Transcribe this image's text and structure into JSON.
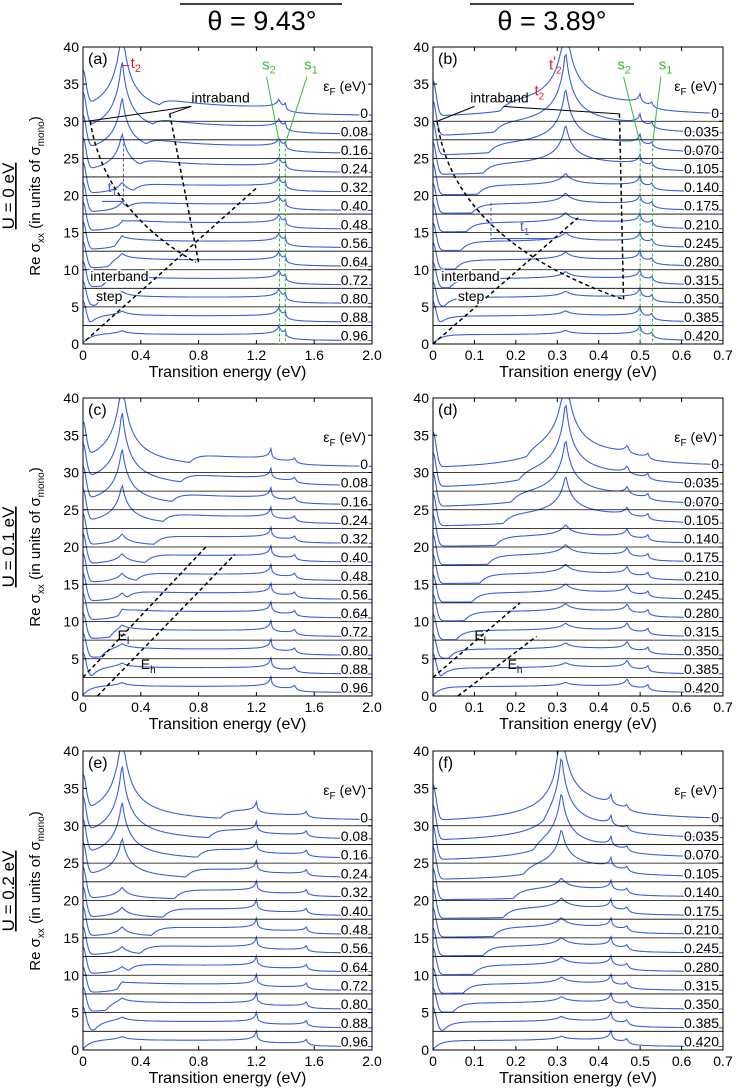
{
  "column_titles": [
    "θ = 9.43°",
    "θ = 3.89°"
  ],
  "row_labels": [
    "U = 0 eV",
    "U = 0.1 eV",
    "U = 0.2 eV"
  ],
  "ylabel_main": "Re σ",
  "ylabel_sub": "xx",
  "ylabel_rest": " (in units of σ",
  "ylabel_sub2": "mono",
  "ylabel_end": ")",
  "xlabel": "Transition energy (eV)",
  "legend_title_main": "ε",
  "legend_title_sub": "F",
  "legend_title_unit": " (eV)",
  "colors": {
    "curve": "#3a5fe0",
    "baseline": "#000000",
    "label_red": "#e02020",
    "label_green": "#33bb33",
    "dashed": "#000000"
  },
  "annotations": {
    "intraband": "intraband",
    "interband": "interband",
    "step": "step",
    "t1": "t",
    "t1_sub": "1",
    "t2": "t",
    "t2_sub": "2",
    "t2p_sub": "2",
    "t2p_prime": "'",
    "s1": "s",
    "s1_sub": "1",
    "s2": "s",
    "s2_sub": "2",
    "El": "E",
    "El_sub": "l",
    "Eh": "E",
    "Eh_sub": "h"
  },
  "chart_data": [
    {
      "panel": "(a)",
      "type": "line",
      "theta": "9.43°",
      "U": "0 eV",
      "xlim": [
        0,
        2.0
      ],
      "ylim": [
        0,
        40
      ],
      "xticks": [
        "0",
        "0.4",
        "0.8",
        "1.2",
        "1.6",
        "2.0"
      ],
      "xtick_values": [
        0,
        0.4,
        0.8,
        1.2,
        1.6,
        2.0
      ],
      "yticks": [
        "0",
        "5",
        "10",
        "15",
        "20",
        "25",
        "30",
        "35",
        "40"
      ],
      "ytick_values": [
        0,
        5,
        10,
        15,
        20,
        25,
        30,
        35,
        40
      ],
      "legend_values": [
        "0.96",
        "0.88",
        "0.80",
        "0.72",
        "0.64",
        "0.56",
        "0.48",
        "0.40",
        "0.32",
        "0.24",
        "0.16",
        "0.08",
        "0"
      ],
      "offset_step": 2.5,
      "peak_energy": 0.27,
      "s_energies": [
        1.36,
        1.4
      ],
      "ef_scale": 1.0
    },
    {
      "panel": "(b)",
      "type": "line",
      "theta": "3.89°",
      "U": "0 eV",
      "xlim": [
        0,
        0.7
      ],
      "ylim": [
        0,
        40
      ],
      "xticks": [
        "0",
        "0.1",
        "0.2",
        "0.3",
        "0.4",
        "0.5",
        "0.6",
        "0.7"
      ],
      "xtick_values": [
        0,
        0.1,
        0.2,
        0.3,
        0.4,
        0.5,
        0.6,
        0.7
      ],
      "yticks": [
        "0",
        "5",
        "10",
        "15",
        "20",
        "25",
        "30",
        "35",
        "40"
      ],
      "ytick_values": [
        0,
        5,
        10,
        15,
        20,
        25,
        30,
        35,
        40
      ],
      "legend_values": [
        "0.420",
        "0.385",
        "0.350",
        "0.315",
        "0.280",
        "0.245",
        "0.210",
        "0.175",
        "0.140",
        "0.105",
        "0.070",
        "0.035",
        "0"
      ],
      "offset_step": 2.5,
      "peak_energy": 0.32,
      "s_energies": [
        0.5,
        0.53
      ],
      "ef_scale": 2.0
    },
    {
      "panel": "(c)",
      "type": "line",
      "theta": "9.43°",
      "U": "0.1 eV",
      "xlim": [
        0,
        2.0
      ],
      "ylim": [
        0,
        40
      ],
      "xticks": [
        "0",
        "0.4",
        "0.8",
        "1.2",
        "1.6",
        "2.0"
      ],
      "xtick_values": [
        0,
        0.4,
        0.8,
        1.2,
        1.6,
        2.0
      ],
      "yticks": [
        "0",
        "5",
        "10",
        "15",
        "20",
        "25",
        "30",
        "35",
        "40"
      ],
      "ytick_values": [
        0,
        5,
        10,
        15,
        20,
        25,
        30,
        35,
        40
      ],
      "legend_values": [
        "0.96",
        "0.88",
        "0.80",
        "0.72",
        "0.64",
        "0.56",
        "0.48",
        "0.40",
        "0.32",
        "0.24",
        "0.16",
        "0.08",
        "0"
      ],
      "offset_step": 2.5,
      "peak_energy": 0.27,
      "s_energies": [
        1.3,
        1.47
      ],
      "ef_scale": 1.0
    },
    {
      "panel": "(d)",
      "type": "line",
      "theta": "3.89°",
      "U": "0.1 eV",
      "xlim": [
        0,
        0.7
      ],
      "ylim": [
        0,
        40
      ],
      "xticks": [
        "0",
        "0.1",
        "0.2",
        "0.3",
        "0.4",
        "0.5",
        "0.6",
        "0.7"
      ],
      "xtick_values": [
        0,
        0.1,
        0.2,
        0.3,
        0.4,
        0.5,
        0.6,
        0.7
      ],
      "yticks": [
        "0",
        "5",
        "10",
        "15",
        "20",
        "25",
        "30",
        "35",
        "40"
      ],
      "ytick_values": [
        0,
        5,
        10,
        15,
        20,
        25,
        30,
        35,
        40
      ],
      "legend_values": [
        "0.420",
        "0.385",
        "0.350",
        "0.315",
        "0.280",
        "0.245",
        "0.210",
        "0.175",
        "0.140",
        "0.105",
        "0.070",
        "0.035",
        "0"
      ],
      "offset_step": 2.5,
      "peak_energy": 0.32,
      "s_energies": [
        0.47,
        0.52
      ],
      "ef_scale": 2.0
    },
    {
      "panel": "(e)",
      "type": "line",
      "theta": "9.43°",
      "U": "0.2 eV",
      "xlim": [
        0,
        2.0
      ],
      "ylim": [
        0,
        40
      ],
      "xticks": [
        "0",
        "0.4",
        "0.8",
        "1.2",
        "1.6",
        "2.0"
      ],
      "xtick_values": [
        0,
        0.4,
        0.8,
        1.2,
        1.6,
        2.0
      ],
      "yticks": [
        "0",
        "5",
        "10",
        "15",
        "20",
        "25",
        "30",
        "35",
        "40"
      ],
      "ytick_values": [
        0,
        5,
        10,
        15,
        20,
        25,
        30,
        35,
        40
      ],
      "legend_values": [
        "0.96",
        "0.88",
        "0.80",
        "0.72",
        "0.64",
        "0.56",
        "0.48",
        "0.40",
        "0.32",
        "0.24",
        "0.16",
        "0.08",
        "0"
      ],
      "offset_step": 2.5,
      "peak_energy": 0.27,
      "s_energies": [
        1.2,
        1.55
      ],
      "ef_scale": 1.0
    },
    {
      "panel": "(f)",
      "type": "line",
      "theta": "3.89°",
      "U": "0.2 eV",
      "xlim": [
        0,
        0.7
      ],
      "ylim": [
        0,
        40
      ],
      "xticks": [
        "0",
        "0.1",
        "0.2",
        "0.3",
        "0.4",
        "0.5",
        "0.6",
        "0.7"
      ],
      "xtick_values": [
        0,
        0.1,
        0.2,
        0.3,
        0.4,
        0.5,
        0.6,
        0.7
      ],
      "yticks": [
        "0",
        "5",
        "10",
        "15",
        "20",
        "25",
        "30",
        "35",
        "40"
      ],
      "ytick_values": [
        0,
        5,
        10,
        15,
        20,
        25,
        30,
        35,
        40
      ],
      "legend_values": [
        "0.420",
        "0.385",
        "0.350",
        "0.315",
        "0.280",
        "0.245",
        "0.210",
        "0.175",
        "0.140",
        "0.105",
        "0.070",
        "0.035",
        "0"
      ],
      "offset_step": 2.5,
      "peak_energy": 0.31,
      "s_energies": [
        0.43,
        0.47
      ],
      "ef_scale": 2.0
    }
  ]
}
